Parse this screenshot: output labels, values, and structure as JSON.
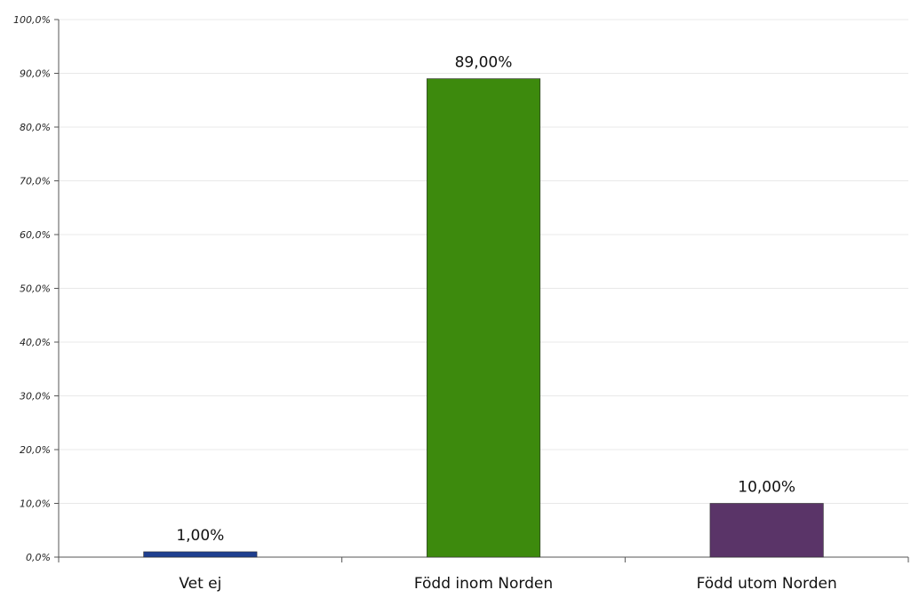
{
  "chart_data": {
    "type": "bar",
    "title": "",
    "xlabel": "",
    "ylabel": "",
    "categories": [
      "Vet ej",
      "Född inom Norden",
      "Född utom Norden"
    ],
    "values": [
      1.0,
      89.0,
      10.0
    ],
    "data_labels": [
      "1,00%",
      "89,00%",
      "10,00%"
    ],
    "colors": [
      "#1f3f8f",
      "#3d8a0d",
      "#5a3468"
    ],
    "ylim": [
      0,
      100
    ],
    "yticks": [
      0,
      10,
      20,
      30,
      40,
      50,
      60,
      70,
      80,
      90,
      100
    ],
    "ytick_labels": [
      "0,0%",
      "10,0%",
      "20,0%",
      "30,0%",
      "40,0%",
      "50,0%",
      "60,0%",
      "70,0%",
      "80,0%",
      "90,0%",
      "100,0%"
    ],
    "grid": true,
    "grid_color": "#e8e8e8",
    "legend": "none"
  }
}
